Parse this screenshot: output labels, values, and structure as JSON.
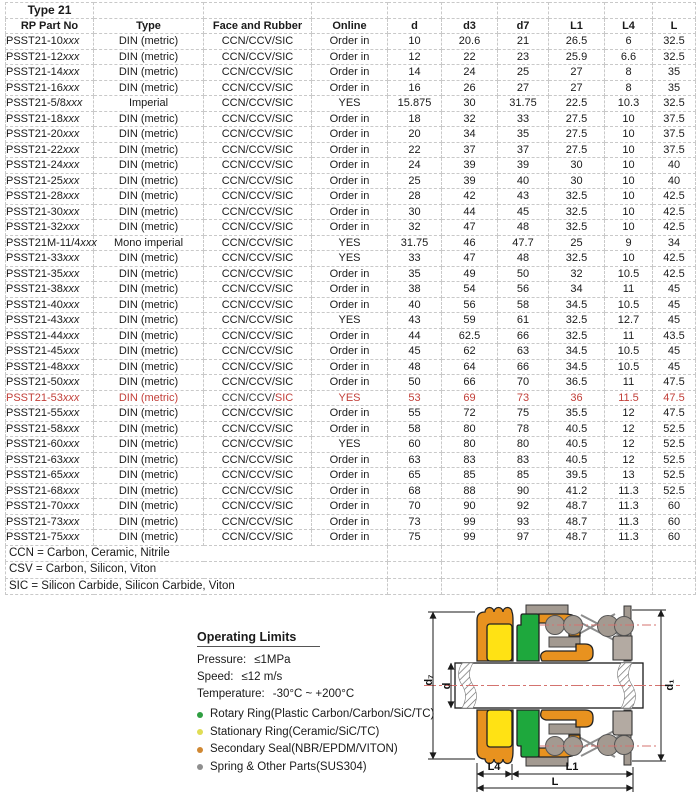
{
  "colors": {
    "highlight": "#c2403a"
  },
  "table": {
    "title": "Type 21",
    "columns": [
      "RP Part No",
      "Type",
      "Face and Rubber",
      "Online",
      "d",
      "d3",
      "d7",
      "L1",
      "L4",
      "L"
    ],
    "part_suffix": "xxx",
    "rows": [
      {
        "part": "PSST21-10",
        "type": "DIN (metric)",
        "face": "CCN/CCV/SIC",
        "online": "Order in",
        "d": "10",
        "d3": "20.6",
        "d7": "21",
        "L1": "26.5",
        "L4": "6",
        "L": "32.5"
      },
      {
        "part": "PSST21-12",
        "type": "DIN (metric)",
        "face": "CCN/CCV/SIC",
        "online": "Order in",
        "d": "12",
        "d3": "22",
        "d7": "23",
        "L1": "25.9",
        "L4": "6.6",
        "L": "32.5"
      },
      {
        "part": "PSST21-14",
        "type": "DIN (metric)",
        "face": "CCN/CCV/SIC",
        "online": "Order in",
        "d": "14",
        "d3": "24",
        "d7": "25",
        "L1": "27",
        "L4": "8",
        "L": "35"
      },
      {
        "part": "PSST21-16",
        "type": "DIN (metric)",
        "face": "CCN/CCV/SIC",
        "online": "Order in",
        "d": "16",
        "d3": "26",
        "d7": "27",
        "L1": "27",
        "L4": "8",
        "L": "35"
      },
      {
        "part": "PSST21-5/8",
        "type": "Imperial",
        "face": "CCN/CCV/SIC",
        "online": "YES",
        "d": "15.875",
        "d3": "30",
        "d7": "31.75",
        "L1": "22.5",
        "L4": "10.3",
        "L": "32.5"
      },
      {
        "part": "PSST21-18",
        "type": "DIN (metric)",
        "face": "CCN/CCV/SIC",
        "online": "Order in",
        "d": "18",
        "d3": "32",
        "d7": "33",
        "L1": "27.5",
        "L4": "10",
        "L": "37.5"
      },
      {
        "part": "PSST21-20",
        "type": "DIN (metric)",
        "face": "CCN/CCV/SIC",
        "online": "Order in",
        "d": "20",
        "d3": "34",
        "d7": "35",
        "L1": "27.5",
        "L4": "10",
        "L": "37.5"
      },
      {
        "part": "PSST21-22",
        "type": "DIN (metric)",
        "face": "CCN/CCV/SIC",
        "online": "Order in",
        "d": "22",
        "d3": "37",
        "d7": "37",
        "L1": "27.5",
        "L4": "10",
        "L": "37.5"
      },
      {
        "part": "PSST21-24",
        "type": "DIN (metric)",
        "face": "CCN/CCV/SIC",
        "online": "Order in",
        "d": "24",
        "d3": "39",
        "d7": "39",
        "L1": "30",
        "L4": "10",
        "L": "40"
      },
      {
        "part": "PSST21-25",
        "type": "DIN (metric)",
        "face": "CCN/CCV/SIC",
        "online": "Order in",
        "d": "25",
        "d3": "39",
        "d7": "40",
        "L1": "30",
        "L4": "10",
        "L": "40"
      },
      {
        "part": "PSST21-28",
        "type": "DIN (metric)",
        "face": "CCN/CCV/SIC",
        "online": "Order in",
        "d": "28",
        "d3": "42",
        "d7": "43",
        "L1": "32.5",
        "L4": "10",
        "L": "42.5"
      },
      {
        "part": "PSST21-30",
        "type": "DIN (metric)",
        "face": "CCN/CCV/SIC",
        "online": "Order in",
        "d": "30",
        "d3": "44",
        "d7": "45",
        "L1": "32.5",
        "L4": "10",
        "L": "42.5"
      },
      {
        "part": "PSST21-32",
        "type": "DIN (metric)",
        "face": "CCN/CCV/SIC",
        "online": "Order in",
        "d": "32",
        "d3": "47",
        "d7": "48",
        "L1": "32.5",
        "L4": "10",
        "L": "42.5"
      },
      {
        "part": "PSST21M-11/4",
        "type": "Mono imperial",
        "face": "CCN/CCV/SIC",
        "online": "YES",
        "d": "31.75",
        "d3": "46",
        "d7": "47.7",
        "L1": "25",
        "L4": "9",
        "L": "34"
      },
      {
        "part": "PSST21-33",
        "type": "DIN (metric)",
        "face": "CCN/CCV/SIC",
        "online": "YES",
        "d": "33",
        "d3": "47",
        "d7": "48",
        "L1": "32.5",
        "L4": "10",
        "L": "42.5"
      },
      {
        "part": "PSST21-35",
        "type": "DIN (metric)",
        "face": "CCN/CCV/SIC",
        "online": "Order in",
        "d": "35",
        "d3": "49",
        "d7": "50",
        "L1": "32",
        "L4": "10.5",
        "L": "42.5"
      },
      {
        "part": "PSST21-38",
        "type": "DIN (metric)",
        "face": "CCN/CCV/SIC",
        "online": "Order in",
        "d": "38",
        "d3": "54",
        "d7": "56",
        "L1": "34",
        "L4": "11",
        "L": "45"
      },
      {
        "part": "PSST21-40",
        "type": "DIN (metric)",
        "face": "CCN/CCV/SIC",
        "online": "Order in",
        "d": "40",
        "d3": "56",
        "d7": "58",
        "L1": "34.5",
        "L4": "10.5",
        "L": "45"
      },
      {
        "part": "PSST21-43",
        "type": "DIN (metric)",
        "face": "CCN/CCV/SIC",
        "online": "YES",
        "d": "43",
        "d3": "59",
        "d7": "61",
        "L1": "32.5",
        "L4": "12.7",
        "L": "45"
      },
      {
        "part": "PSST21-44",
        "type": "DIN (metric)",
        "face": "CCN/CCV/SIC",
        "online": "Order in",
        "d": "44",
        "d3": "62.5",
        "d7": "66",
        "L1": "32.5",
        "L4": "11",
        "L": "43.5"
      },
      {
        "part": "PSST21-45",
        "type": "DIN (metric)",
        "face": "CCN/CCV/SIC",
        "online": "Order in",
        "d": "45",
        "d3": "62",
        "d7": "63",
        "L1": "34.5",
        "L4": "10.5",
        "L": "45"
      },
      {
        "part": "PSST21-48",
        "type": "DIN (metric)",
        "face": "CCN/CCV/SIC",
        "online": "Order in",
        "d": "48",
        "d3": "64",
        "d7": "66",
        "L1": "34.5",
        "L4": "10.5",
        "L": "45"
      },
      {
        "part": "PSST21-50",
        "type": "DIN (metric)",
        "face": "CCN/CCV/SIC",
        "online": "Order in",
        "d": "50",
        "d3": "66",
        "d7": "70",
        "L1": "36.5",
        "L4": "11",
        "L": "47.5"
      },
      {
        "part": "PSST21-53",
        "type": "DIN (metric)",
        "face_prefix": "CCN/CCV/",
        "face_highlight": "SIC",
        "online": "YES",
        "d": "53",
        "d3": "69",
        "d7": "73",
        "L1": "36",
        "L4": "11.5",
        "L": "47.5",
        "highlight": true
      },
      {
        "part": "PSST21-55",
        "type": "DIN (metric)",
        "face": "CCN/CCV/SIC",
        "online": "Order in",
        "d": "55",
        "d3": "72",
        "d7": "75",
        "L1": "35.5",
        "L4": "12",
        "L": "47.5"
      },
      {
        "part": "PSST21-58",
        "type": "DIN (metric)",
        "face": "CCN/CCV/SIC",
        "online": "Order in",
        "d": "58",
        "d3": "80",
        "d7": "78",
        "L1": "40.5",
        "L4": "12",
        "L": "52.5"
      },
      {
        "part": "PSST21-60",
        "type": "DIN (metric)",
        "face": "CCN/CCV/SIC",
        "online": "YES",
        "d": "60",
        "d3": "80",
        "d7": "80",
        "L1": "40.5",
        "L4": "12",
        "L": "52.5"
      },
      {
        "part": "PSST21-63",
        "type": "DIN (metric)",
        "face": "CCN/CCV/SIC",
        "online": "Order in",
        "d": "63",
        "d3": "83",
        "d7": "83",
        "L1": "40.5",
        "L4": "12",
        "L": "52.5"
      },
      {
        "part": "PSST21-65",
        "type": "DIN (metric)",
        "face": "CCN/CCV/SIC",
        "online": "Order in",
        "d": "65",
        "d3": "85",
        "d7": "85",
        "L1": "39.5",
        "L4": "13",
        "L": "52.5"
      },
      {
        "part": "PSST21-68",
        "type": "DIN (metric)",
        "face": "CCN/CCV/SIC",
        "online": "Order in",
        "d": "68",
        "d3": "88",
        "d7": "90",
        "L1": "41.2",
        "L4": "11.3",
        "L": "52.5"
      },
      {
        "part": "PSST21-70",
        "type": "DIN (metric)",
        "face": "CCN/CCV/SIC",
        "online": "Order in",
        "d": "70",
        "d3": "90",
        "d7": "92",
        "L1": "48.7",
        "L4": "11.3",
        "L": "60"
      },
      {
        "part": "PSST21-73",
        "type": "DIN (metric)",
        "face": "CCN/CCV/SIC",
        "online": "Order in",
        "d": "73",
        "d3": "99",
        "d7": "93",
        "L1": "48.7",
        "L4": "11.3",
        "L": "60"
      },
      {
        "part": "PSST21-75",
        "type": "DIN (metric)",
        "face": "CCN/CCV/SIC",
        "online": "Order in",
        "d": "75",
        "d3": "99",
        "d7": "97",
        "L1": "48.7",
        "L4": "11.3",
        "L": "60"
      }
    ],
    "notes": [
      "CCN = Carbon, Ceramic, Nitrile",
      "CSV = Carbon, Silicon, Viton",
      "SIC = Silicon Carbide, Silicon Carbide, Viton"
    ]
  },
  "operating_limits": {
    "title": "Operating Limits",
    "specs": [
      {
        "label": "Pressure:",
        "value": "≤1MPa"
      },
      {
        "label": "Speed:",
        "value": "≤12 m/s"
      },
      {
        "label": "Temperature:",
        "value": "-30°C ~ +200°C"
      }
    ],
    "legend": [
      {
        "color": "#2f9e41",
        "label": "Rotary Ring(Plastic Carbon/Carbon/SiC/TC)"
      },
      {
        "color": "#e0dd55",
        "label": "Stationary Ring(Ceramic/SiC/TC)"
      },
      {
        "color": "#d08833",
        "label": "Secondary Seal(NBR/EPDM/VITON)"
      },
      {
        "color": "#8f8f8f",
        "label": "Spring & Other Parts(SUS304)"
      }
    ]
  },
  "diagram": {
    "labels": {
      "d7": "d₇",
      "d": "d",
      "d1": "d₁",
      "L4": "L4",
      "L1": "L1",
      "L": "L"
    },
    "colors": {
      "orange": "#e8921f",
      "yellow": "#ffe214",
      "green": "#1ea83d",
      "gray_metal": "#a39a91",
      "seat_gray": "#b3aaa2",
      "centerline_red": "#d4736f"
    }
  }
}
